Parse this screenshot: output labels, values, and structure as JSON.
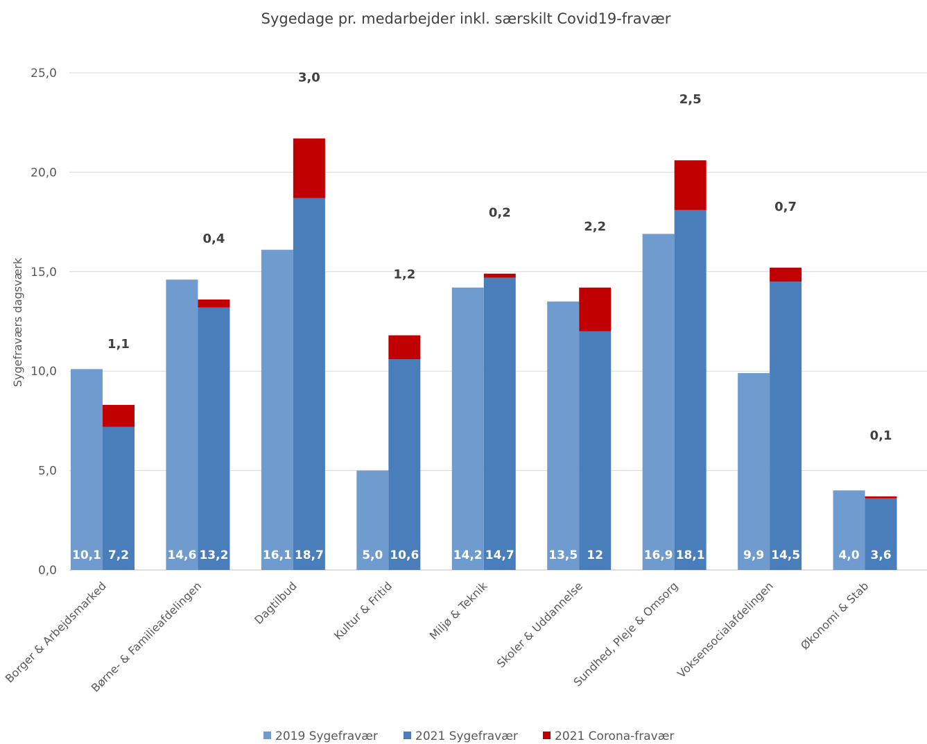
{
  "chart_data": {
    "type": "bar",
    "title": "Sygedage pr. medarbejder inkl. særskilt Covid19-fravær",
    "xlabel": "",
    "ylabel": "Sygefraværs dagsværk",
    "ylim": [
      0,
      25
    ],
    "yticks": [
      "0,0",
      "5,0",
      "10,0",
      "15,0",
      "20,0",
      "25,0"
    ],
    "grid": true,
    "legend_position": "bottom",
    "categories": [
      "Borger & Arbejdsmarked",
      "Børne- & Familieafdelingen",
      "Dagtilbud",
      "Kultur & Fritid",
      "Miljø & Teknik",
      "Skoler & Uddannelse",
      "Sundhed, Pleje & Omsorg",
      "Voksensocialafdelingen",
      "Økonomi & Stab"
    ],
    "series": [
      {
        "name": "2019 Sygefravær",
        "color": "#6f9bcf",
        "stack": "2019",
        "values": [
          10.1,
          14.6,
          16.1,
          5.0,
          14.2,
          13.5,
          16.9,
          9.9,
          4.0
        ],
        "labels": [
          "10,1",
          "14,6",
          "16,1",
          "5,0",
          "14,2",
          "13,5",
          "16,9",
          "9,9",
          "4,0"
        ]
      },
      {
        "name": "2021 Sygefravær",
        "color": "#4a7ebb",
        "stack": "2021",
        "values": [
          7.2,
          13.2,
          18.7,
          10.6,
          14.7,
          12.0,
          18.1,
          14.5,
          3.6
        ],
        "labels": [
          "7,2",
          "13,2",
          "18,7",
          "10,6",
          "14,7",
          "12",
          "18,1",
          "14,5",
          "3,6"
        ]
      },
      {
        "name": "2021 Corona-fravær",
        "color": "#c00000",
        "stack": "2021",
        "values": [
          1.1,
          0.4,
          3.0,
          1.2,
          0.2,
          2.2,
          2.5,
          0.7,
          0.1
        ],
        "labels": [
          "1,1",
          "0,4",
          "3,0",
          "1,2",
          "0,2",
          "2,2",
          "2,5",
          "0,7",
          "0,1"
        ]
      }
    ]
  }
}
